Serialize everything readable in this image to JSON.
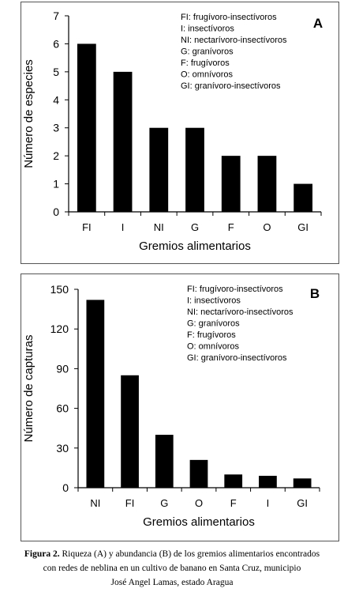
{
  "chart_data": [
    {
      "type": "bar",
      "panel_label": "A",
      "categories": [
        "FI",
        "I",
        "NI",
        "G",
        "F",
        "O",
        "GI"
      ],
      "values": [
        6,
        5,
        3,
        3,
        2,
        2,
        1
      ],
      "xlabel": "Gremios alimentarios",
      "ylabel": "Número de especies",
      "ylim": [
        0,
        7
      ],
      "yticks": [
        0,
        1,
        2,
        3,
        4,
        5,
        6,
        7
      ],
      "bar_color": "#000000",
      "grid": false,
      "legend_position": "top-right",
      "legend": [
        "FI: frugívoro-insectívoros",
        "I: insectívoros",
        "NI: nectarívoro-insectívoros",
        "G: granívoros",
        "F: frugívoros",
        "O: omnívoros",
        "GI: granívoro-insectívoros"
      ]
    },
    {
      "type": "bar",
      "panel_label": "B",
      "categories": [
        "NI",
        "FI",
        "G",
        "O",
        "F",
        "I",
        "GI"
      ],
      "values": [
        142,
        85,
        40,
        21,
        10,
        9,
        7
      ],
      "xlabel": "Gremios alimentarios",
      "ylabel": "Número de capturas",
      "ylim": [
        0,
        150
      ],
      "yticks": [
        0,
        30,
        60,
        90,
        120,
        150
      ],
      "bar_color": "#000000",
      "grid": false,
      "legend_position": "top-right",
      "legend": [
        "FI: frugívoro-insectívoros",
        "I: insectívoros",
        "NI: nectarívoro-insectívoros",
        "G: granívoros",
        "F: frugívoros",
        "O: omnívoros",
        "GI: granívoro-insectívoros"
      ]
    }
  ],
  "caption": {
    "label": "Figura 2.",
    "line1": "Riqueza (A) y abundancia (B) de los gremios alimentarios encontrados",
    "line2": "con redes de neblina en un cultivo de banano en Santa Cruz, municipio",
    "line3": "José Angel Lamas, estado Aragua"
  }
}
